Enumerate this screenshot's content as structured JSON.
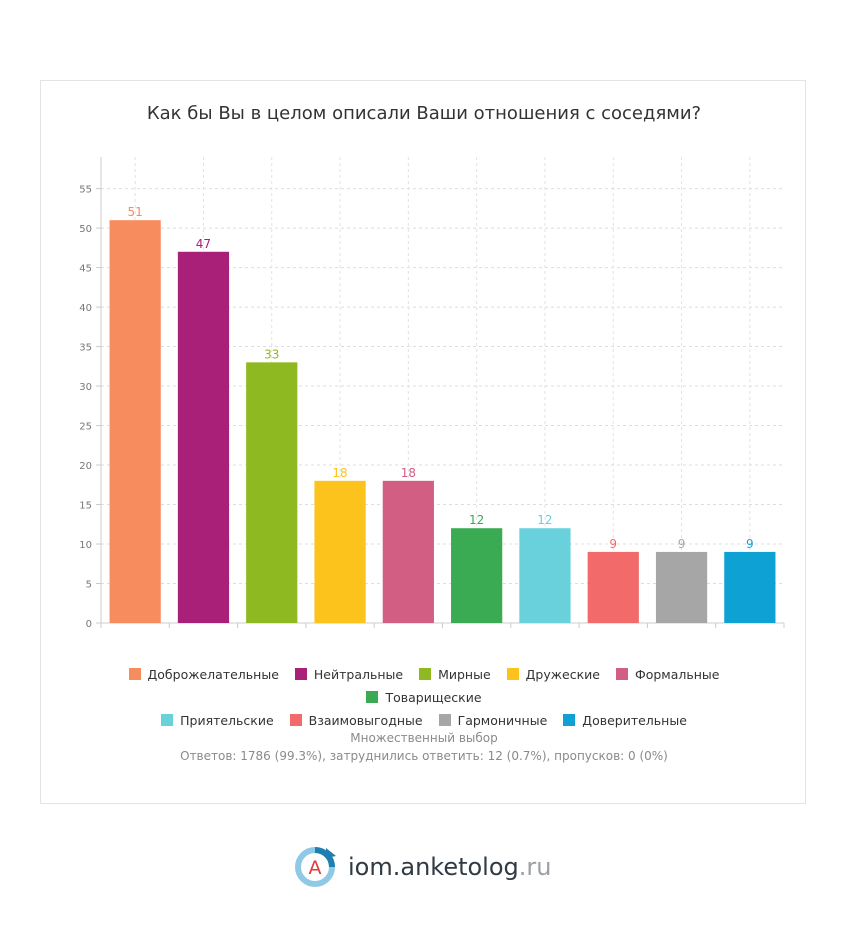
{
  "chart_data": {
    "type": "bar",
    "title": "Как бы Вы в целом описали Ваши отношения с соседями?",
    "categories": [
      "Доброжелательные",
      "Нейтральные",
      "Мирные",
      "Дружеские",
      "Формальные",
      "Товарищеские",
      "Приятельские",
      "Взаимовыгодные",
      "Гармоничные",
      "Доверительные"
    ],
    "values": [
      51,
      47,
      33,
      18,
      18,
      12,
      12,
      9,
      9,
      9
    ],
    "colors": [
      "#f78c5f",
      "#a82077",
      "#8eb920",
      "#fbc31c",
      "#d25e84",
      "#3aab53",
      "#68d1dc",
      "#f26a6a",
      "#a6a6a6",
      "#0ea2d4"
    ],
    "yticks": [
      0,
      5,
      10,
      15,
      20,
      25,
      30,
      35,
      40,
      45,
      50,
      55
    ],
    "ylim": [
      0,
      59
    ],
    "grid": true,
    "legend_position": "bottom",
    "data_labels": true
  },
  "notes": {
    "multi_choice": "Множественный выбор",
    "summary": "Ответов: 1786 (99.3%), затруднились ответить: 12 (0.7%), пропусков: 0 (0%)"
  },
  "brand": {
    "logo_letter": "A",
    "name": "iom.anketolog",
    "tld": ".ru"
  }
}
